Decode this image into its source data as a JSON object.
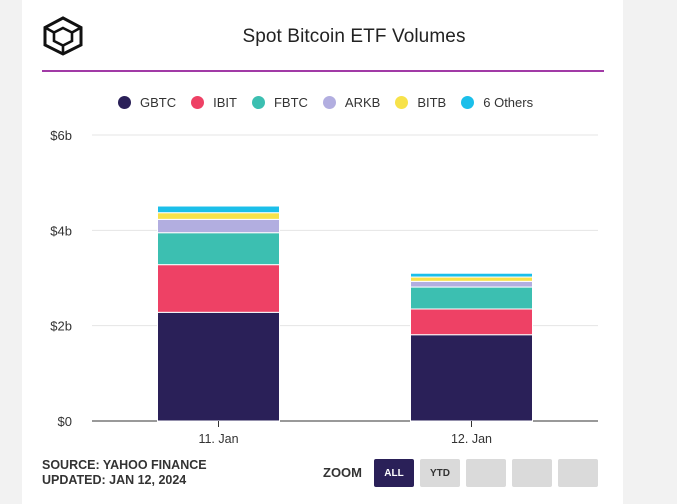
{
  "header": {
    "logo_icon": "cube-logo-icon",
    "title": "Spot Bitcoin ETF Volumes"
  },
  "colors": {
    "title_rule": "#a13aa6",
    "GBTC": "#2a2058",
    "IBIT": "#ee4165",
    "FBTC": "#3cbfb1",
    "ARKB": "#b2aee0",
    "BITB": "#f7e24a",
    "others": "#1bbfea"
  },
  "chart_data": {
    "type": "bar",
    "stacked": true,
    "title": "Spot Bitcoin ETF Volumes",
    "categories": [
      "11. Jan",
      "12. Jan"
    ],
    "series": [
      {
        "name": "GBTC",
        "color": "#2a2058",
        "values": [
          2.28,
          1.81
        ]
      },
      {
        "name": "IBIT",
        "color": "#ee4165",
        "values": [
          1.0,
          0.54
        ]
      },
      {
        "name": "FBTC",
        "color": "#3cbfb1",
        "values": [
          0.67,
          0.46
        ]
      },
      {
        "name": "ARKB",
        "color": "#b2aee0",
        "values": [
          0.28,
          0.12
        ]
      },
      {
        "name": "BITB",
        "color": "#f7e24a",
        "values": [
          0.14,
          0.09
        ]
      },
      {
        "name": "6 Others",
        "color": "#1bbfea",
        "values": [
          0.14,
          0.08
        ]
      }
    ],
    "yticks": [
      0,
      2,
      4,
      6
    ],
    "ytick_labels": [
      "$0",
      "$2b",
      "$4b",
      "$6b"
    ],
    "ylim": [
      0,
      6
    ],
    "xlabel": "",
    "ylabel": "",
    "legend_position": "top"
  },
  "footer": {
    "source": "SOURCE: YAHOO FINANCE",
    "updated": "UPDATED: JAN 12, 2024"
  },
  "zoom": {
    "label": "ZOOM",
    "buttons": [
      "ALL",
      "YTD"
    ],
    "active": "ALL"
  }
}
